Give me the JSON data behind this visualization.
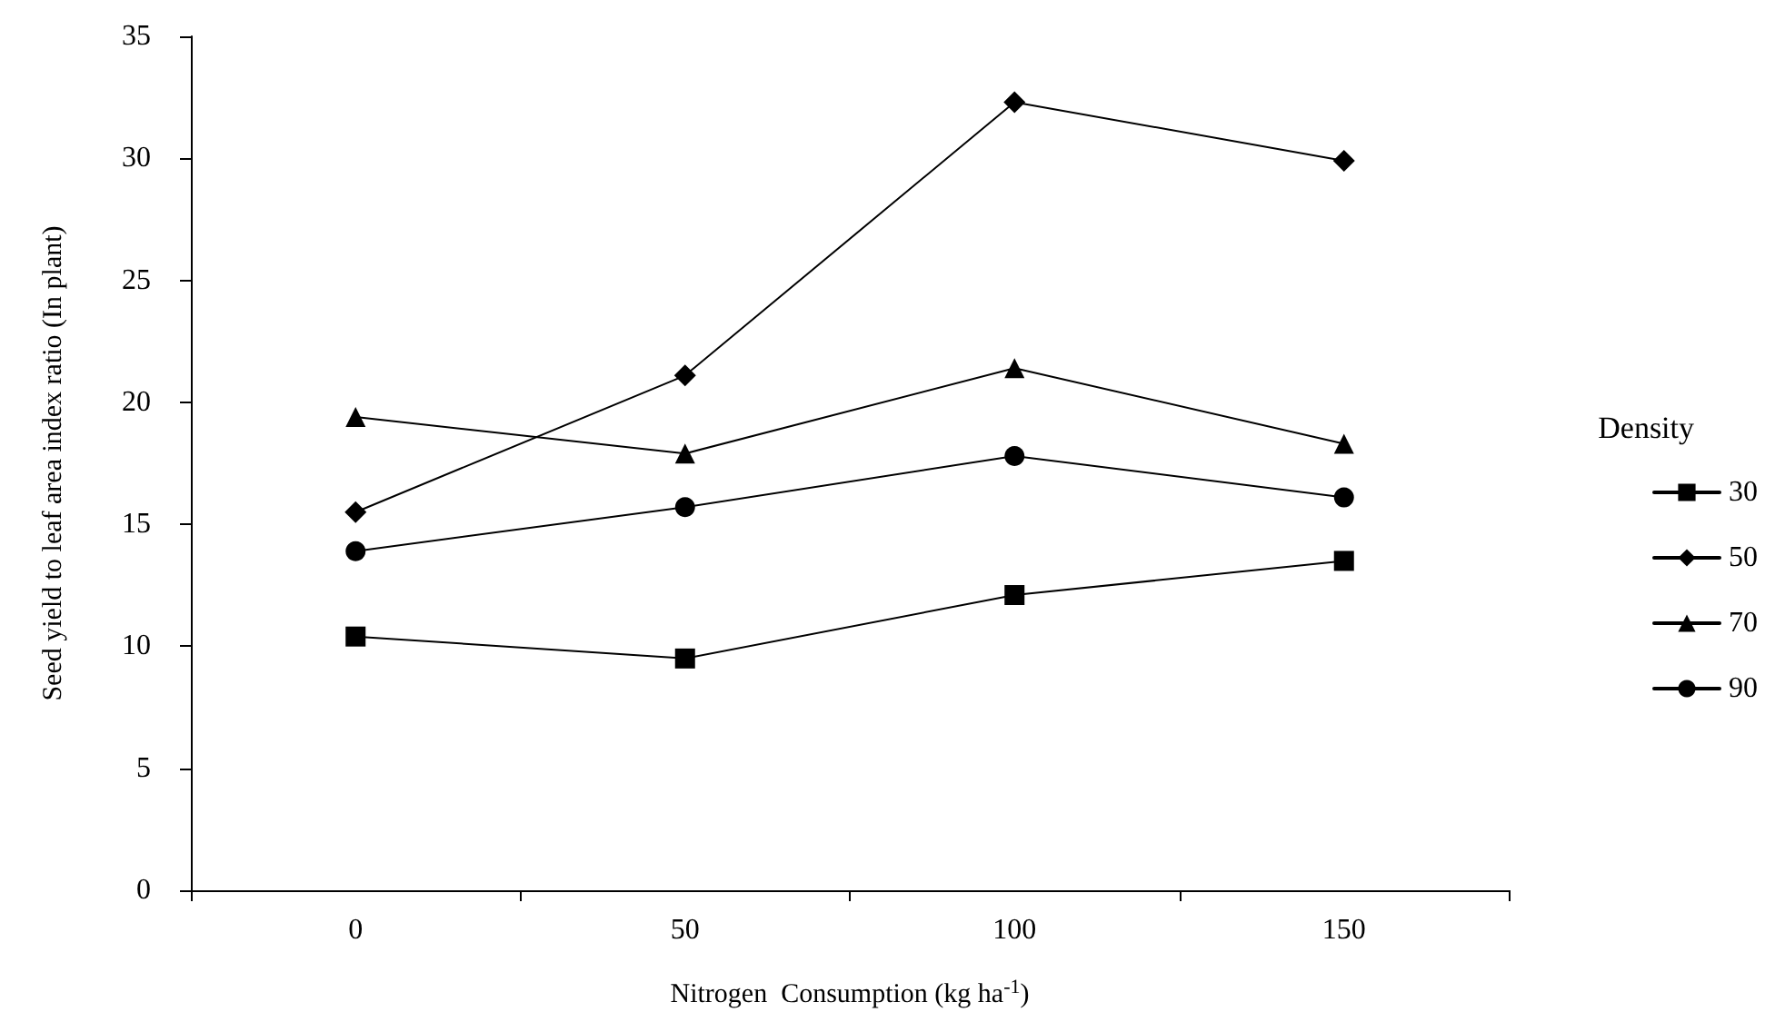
{
  "chart_data": {
    "type": "line",
    "xlabel": "Nitrogen  Consumption (kg ha$^{-1}$)",
    "ylabel": "Seed yield to leaf area index ratio (In plant)",
    "legend_title": "Density",
    "categories": [
      "0",
      "50",
      "100",
      "150"
    ],
    "ylim": [
      0,
      35
    ],
    "yticks": [
      0,
      5,
      10,
      15,
      20,
      25,
      30,
      35
    ],
    "grid": false,
    "legend": "right",
    "line_style": "solid",
    "series": [
      {
        "name": "30",
        "color": "#000000",
        "marker": "square",
        "values": [
          10.4,
          9.5,
          12.1,
          13.5
        ]
      },
      {
        "name": "50",
        "color": "#000000",
        "marker": "diamond",
        "values": [
          15.5,
          21.1,
          32.3,
          29.9
        ]
      },
      {
        "name": "70",
        "color": "#000000",
        "marker": "triangle",
        "values": [
          19.4,
          17.9,
          21.4,
          18.3
        ]
      },
      {
        "name": "90",
        "color": "#000000",
        "marker": "circle",
        "values": [
          13.9,
          15.7,
          17.8,
          16.1
        ]
      }
    ]
  }
}
